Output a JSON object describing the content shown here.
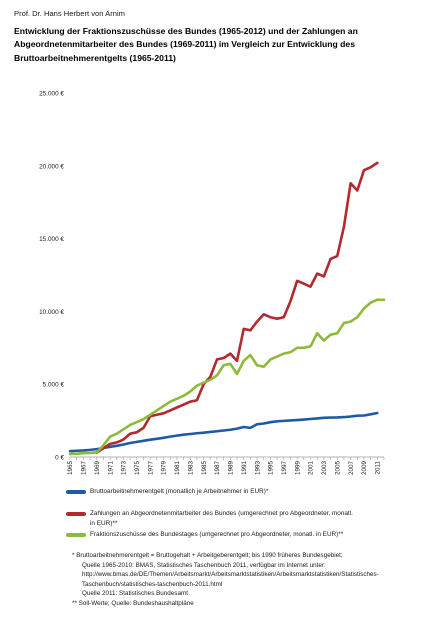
{
  "author": "Prof. Dr. Hans Herbert von Arnim",
  "title_lines": [
    "Entwicklung der Fraktionszuschüsse des Bundes (1965-2012) und der Zahlungen an",
    "Abgeordnetenmitarbeiter des Bundes (1969-2011) im Vergleich zur Entwicklung des",
    "Bruttoarbeitnehmerentgelts (1965-2011)"
  ],
  "legend": {
    "item1": "Bruttoarbeitnehmerentgelt (monatlich je Arbeitnehmer in EUR)*",
    "item2_line1": "Zahlungen an Abgeordnetenmitarbeiter des Bundes (umgerechnet pro Abgeordneter, monatl.",
    "item2_line2": "in EUR)**",
    "item3": "Fraktionszuschüsse des Bundestages (umgerechnet pro Abgeordneter, monatl. in EUR)**"
  },
  "notes": {
    "line1": "*   Bruttoarbeitnehmerentgelt = Bruttogehalt + Arbeitgeberentgelt; bis 1990 früheres Bundesgebiet;",
    "line2": "Quelle 1965-2010: BMAS, Statistisches Taschenbuch 2011, verfügbar im Internet unter:",
    "line3": "http://www.bmas.de/DE/Themen/Arbeitsmarkt/Arbeitsmarktstatistiken/Arbeitsmarktstatistiken/Statistisches-",
    "line4": "Taschenbuch/statistisches-taschenbuch-2011.html",
    "line5": "Quelle 2011: Statistisches Bundesamt",
    "line6": "** Soll-Werte; Quelle: Bundeshaushaltpläne"
  },
  "chart_data": {
    "type": "line",
    "ylim": [
      0,
      25000
    ],
    "xlim": [
      1965,
      2012
    ],
    "grid": false,
    "legend_position": "bottom",
    "y_ticks": [
      0,
      5000,
      10000,
      15000,
      20000,
      25000
    ],
    "y_tick_labels": [
      "0 €",
      "5.000 €",
      "10.000 €",
      "15.000 €",
      "20.000 €",
      "25.000 €"
    ],
    "x_ticks": [
      1965,
      1967,
      1969,
      1971,
      1973,
      1975,
      1977,
      1979,
      1981,
      1983,
      1985,
      1987,
      1989,
      1991,
      1993,
      1995,
      1997,
      1999,
      2001,
      2003,
      2005,
      2007,
      2009,
      2011
    ],
    "series": [
      {
        "name": "Bruttoarbeitnehmerentgelt (monatlich je Arbeitnehmer in EUR)*",
        "color": "#1f5aa6",
        "points": [
          [
            1965,
            400
          ],
          [
            1966,
            430
          ],
          [
            1967,
            450
          ],
          [
            1968,
            490
          ],
          [
            1969,
            540
          ],
          [
            1970,
            620
          ],
          [
            1971,
            700
          ],
          [
            1972,
            770
          ],
          [
            1973,
            860
          ],
          [
            1974,
            960
          ],
          [
            1975,
            1040
          ],
          [
            1976,
            1110
          ],
          [
            1977,
            1190
          ],
          [
            1978,
            1250
          ],
          [
            1979,
            1320
          ],
          [
            1980,
            1400
          ],
          [
            1981,
            1470
          ],
          [
            1982,
            1530
          ],
          [
            1983,
            1580
          ],
          [
            1984,
            1630
          ],
          [
            1985,
            1670
          ],
          [
            1986,
            1720
          ],
          [
            1987,
            1770
          ],
          [
            1988,
            1820
          ],
          [
            1989,
            1870
          ],
          [
            1990,
            1950
          ],
          [
            1991,
            2060
          ],
          [
            1992,
            2000
          ],
          [
            1993,
            2250
          ],
          [
            1994,
            2300
          ],
          [
            1995,
            2390
          ],
          [
            1996,
            2450
          ],
          [
            1997,
            2480
          ],
          [
            1998,
            2510
          ],
          [
            1999,
            2540
          ],
          [
            2000,
            2570
          ],
          [
            2001,
            2610
          ],
          [
            2002,
            2650
          ],
          [
            2003,
            2690
          ],
          [
            2004,
            2710
          ],
          [
            2005,
            2720
          ],
          [
            2006,
            2740
          ],
          [
            2007,
            2780
          ],
          [
            2008,
            2840
          ],
          [
            2009,
            2850
          ],
          [
            2010,
            2930
          ],
          [
            2011,
            3020
          ]
        ]
      },
      {
        "name": "Zahlungen an Abgeordnetenmitarbeiter des Bundes (umgerechnet pro Abgeordneter, monatl. in EUR)**",
        "color": "#b22a2e",
        "points": [
          [
            1969,
            300
          ],
          [
            1970,
            600
          ],
          [
            1971,
            900
          ],
          [
            1972,
            1000
          ],
          [
            1973,
            1200
          ],
          [
            1974,
            1600
          ],
          [
            1975,
            1700
          ],
          [
            1976,
            2000
          ],
          [
            1977,
            2800
          ],
          [
            1978,
            2900
          ],
          [
            1979,
            3000
          ],
          [
            1980,
            3200
          ],
          [
            1981,
            3400
          ],
          [
            1982,
            3600
          ],
          [
            1983,
            3800
          ],
          [
            1984,
            3900
          ],
          [
            1985,
            5000
          ],
          [
            1986,
            5500
          ],
          [
            1987,
            6700
          ],
          [
            1988,
            6800
          ],
          [
            1989,
            7100
          ],
          [
            1990,
            6600
          ],
          [
            1991,
            8800
          ],
          [
            1992,
            8700
          ],
          [
            1993,
            9300
          ],
          [
            1994,
            9800
          ],
          [
            1995,
            9600
          ],
          [
            1996,
            9500
          ],
          [
            1997,
            9600
          ],
          [
            1998,
            10700
          ],
          [
            1999,
            12100
          ],
          [
            2000,
            11900
          ],
          [
            2001,
            11700
          ],
          [
            2002,
            12600
          ],
          [
            2003,
            12400
          ],
          [
            2004,
            13600
          ],
          [
            2005,
            13800
          ],
          [
            2006,
            15800
          ],
          [
            2007,
            18800
          ],
          [
            2008,
            18300
          ],
          [
            2009,
            19700
          ],
          [
            2010,
            19900
          ],
          [
            2011,
            20200
          ]
        ]
      },
      {
        "name": "Fraktionszuschüsse des Bundestages (umgerechnet pro Abgeordneter, monatl. in EUR)**",
        "color": "#8dba3a",
        "points": [
          [
            1965,
            200
          ],
          [
            1966,
            230
          ],
          [
            1967,
            260
          ],
          [
            1968,
            280
          ],
          [
            1969,
            320
          ],
          [
            1970,
            800
          ],
          [
            1971,
            1400
          ],
          [
            1972,
            1600
          ],
          [
            1973,
            1900
          ],
          [
            1974,
            2200
          ],
          [
            1975,
            2400
          ],
          [
            1976,
            2600
          ],
          [
            1977,
            2900
          ],
          [
            1978,
            3200
          ],
          [
            1979,
            3500
          ],
          [
            1980,
            3800
          ],
          [
            1981,
            4000
          ],
          [
            1982,
            4200
          ],
          [
            1983,
            4500
          ],
          [
            1984,
            4900
          ],
          [
            1985,
            5100
          ],
          [
            1986,
            5300
          ],
          [
            1987,
            5600
          ],
          [
            1988,
            6300
          ],
          [
            1989,
            6400
          ],
          [
            1990,
            5700
          ],
          [
            1991,
            6600
          ],
          [
            1992,
            7000
          ],
          [
            1993,
            6300
          ],
          [
            1994,
            6200
          ],
          [
            1995,
            6700
          ],
          [
            1996,
            6900
          ],
          [
            1997,
            7100
          ],
          [
            1998,
            7200
          ],
          [
            1999,
            7500
          ],
          [
            2000,
            7500
          ],
          [
            2001,
            7600
          ],
          [
            2002,
            8500
          ],
          [
            2003,
            8000
          ],
          [
            2004,
            8400
          ],
          [
            2005,
            8500
          ],
          [
            2006,
            9200
          ],
          [
            2007,
            9300
          ],
          [
            2008,
            9600
          ],
          [
            2009,
            10200
          ],
          [
            2010,
            10600
          ],
          [
            2011,
            10800
          ],
          [
            2012,
            10800
          ]
        ]
      }
    ]
  }
}
